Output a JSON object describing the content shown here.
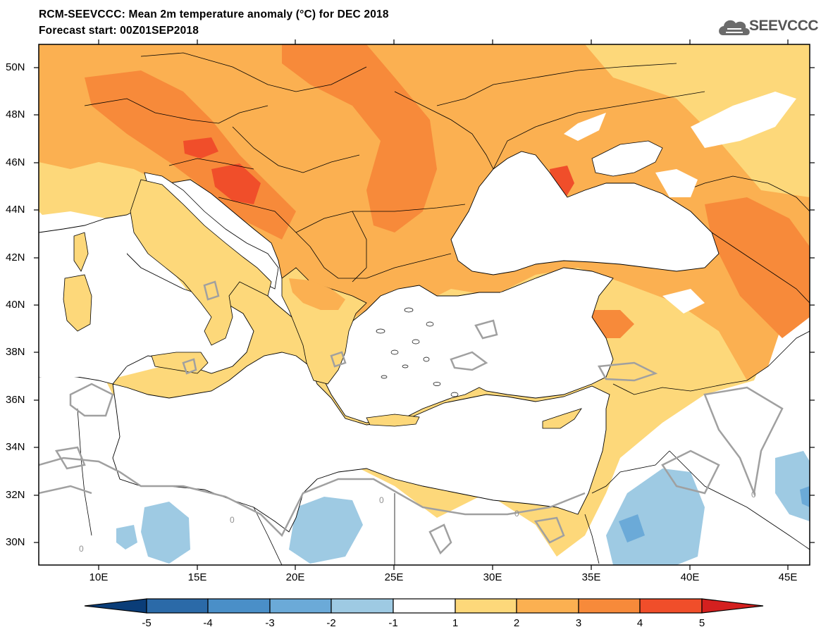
{
  "header": {
    "title_line1": "RCM-SEEVCCC: Mean 2m temperature anomaly (°C) for DEC 2018",
    "title_line2": "Forecast start: 00Z01SEP2018"
  },
  "logo": {
    "text": "SEEVCCC",
    "icon": "cloud-icon"
  },
  "map": {
    "lat_labels": [
      "50N",
      "48N",
      "46N",
      "44N",
      "42N",
      "40N",
      "38N",
      "36N",
      "34N",
      "32N",
      "30N"
    ],
    "lon_labels": [
      "10E",
      "15E",
      "20E",
      "25E",
      "30E",
      "35E",
      "40E",
      "45E"
    ],
    "contour_label": "0"
  },
  "colorbar": {
    "ticks": [
      "-5",
      "-4",
      "-3",
      "-2",
      "-1",
      "1",
      "2",
      "3",
      "4",
      "5"
    ],
    "colors": {
      "below_-5": "#0a3d78",
      "-5_-4": "#2b6aa8",
      "-4_-3": "#4a8fc8",
      "-3_-2": "#6baad8",
      "-2_-1": "#9ecae3",
      "-1_1": "#ffffff",
      "1_2": "#fdd87a",
      "2_3": "#fbb051",
      "3_4": "#f78a3a",
      "4_5": "#f04e2a",
      "above_5": "#d4201f"
    }
  }
}
